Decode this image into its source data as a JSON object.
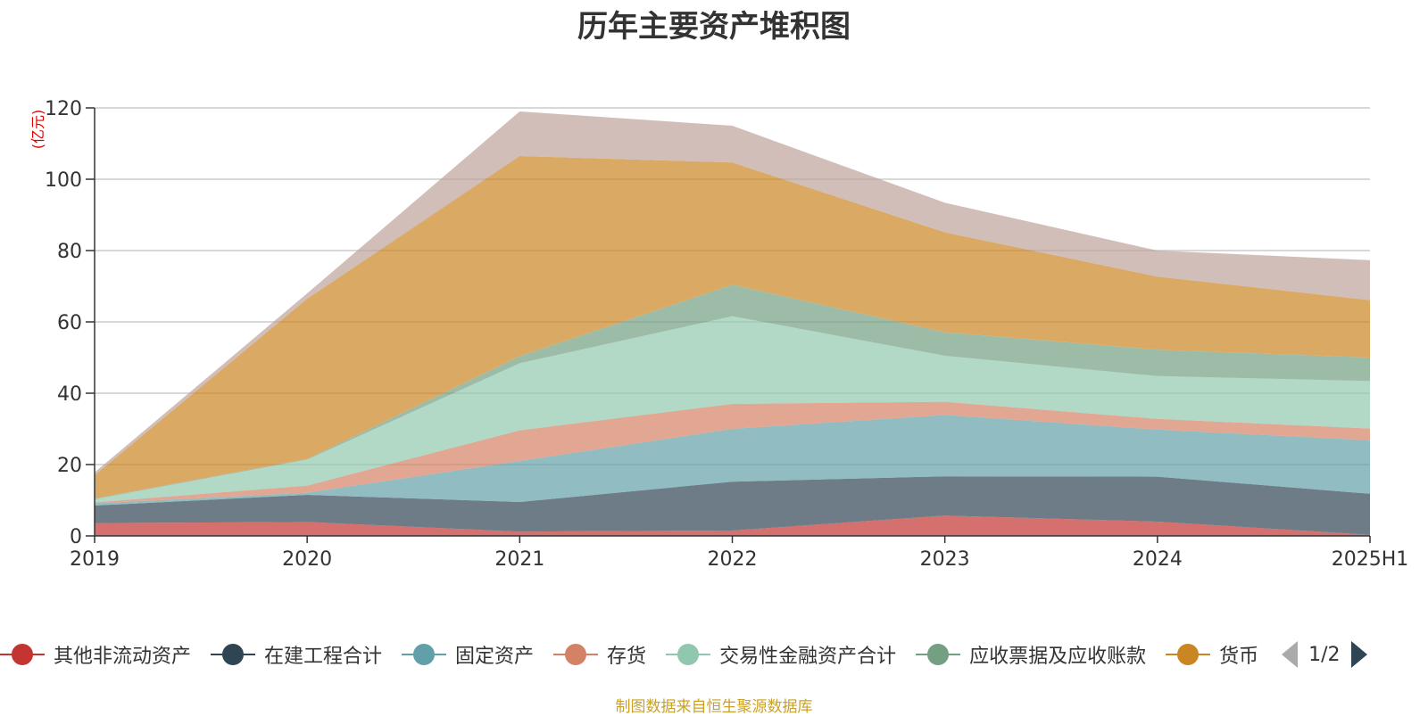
{
  "chart_data": {
    "type": "area",
    "stacked": true,
    "title": "历年主要资产堆积图",
    "ylabel": "(亿元)",
    "xlabel": "",
    "ylim": [
      0,
      120
    ],
    "yticks": [
      0,
      20,
      40,
      60,
      80,
      100,
      120
    ],
    "grid": true,
    "legend_position": "bottom",
    "categories": [
      "2019",
      "2020",
      "2021",
      "2022",
      "2023",
      "2024",
      "2025H1"
    ],
    "series": [
      {
        "name": "其他非流动资产",
        "color": "#c23531",
        "values": [
          3.6,
          3.9,
          1.2,
          1.5,
          5.7,
          4.0,
          0.3
        ]
      },
      {
        "name": "在建工程合计",
        "color": "#2f4554",
        "values": [
          4.9,
          7.6,
          8.3,
          13.7,
          11.0,
          12.6,
          11.5
        ]
      },
      {
        "name": "固定资产",
        "color": "#61a0a8",
        "values": [
          0.6,
          0.6,
          11.5,
          14.8,
          17.2,
          13.2,
          15.0
        ]
      },
      {
        "name": "存货",
        "color": "#d48265",
        "values": [
          0.3,
          2.0,
          8.6,
          7.0,
          3.7,
          3.0,
          3.3
        ]
      },
      {
        "name": "交易性金融资产合计",
        "color": "#91c7ae",
        "values": [
          0.9,
          7.3,
          18.8,
          24.6,
          12.9,
          12.0,
          13.3
        ]
      },
      {
        "name": "应收票据及应收账款",
        "color": "#749f83",
        "values": [
          0.2,
          0.2,
          2.0,
          8.8,
          6.6,
          7.4,
          6.6
        ]
      },
      {
        "name": "货币",
        "color": "#ca8622",
        "values": [
          6.5,
          44.9,
          56.1,
          34.3,
          28.0,
          20.5,
          16.1
        ]
      },
      {
        "name": "",
        "color": "#bda29a",
        "values": [
          0.8,
          1.5,
          12.5,
          10.3,
          8.3,
          7.3,
          11.2
        ]
      }
    ]
  },
  "legend": {
    "pager": "1/2",
    "visible_count": 7
  },
  "source_note": "制图数据来自恒生聚源数据库"
}
